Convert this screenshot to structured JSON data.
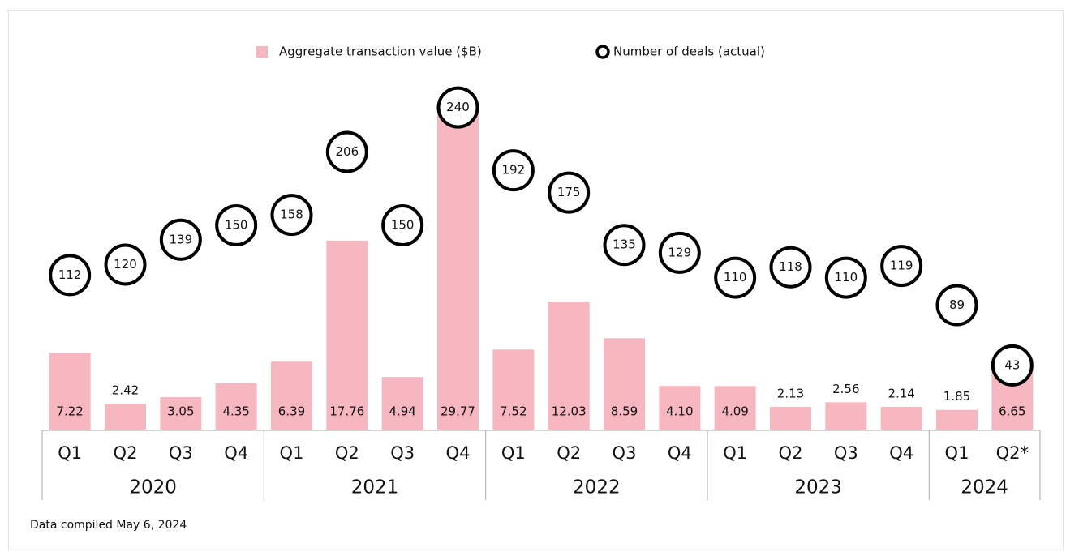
{
  "chart_data": {
    "type": "bar",
    "groups": [
      {
        "label": "2020",
        "items": [
          "Q1",
          "Q2",
          "Q3",
          "Q4"
        ]
      },
      {
        "label": "2021",
        "items": [
          "Q1",
          "Q2",
          "Q3",
          "Q4"
        ]
      },
      {
        "label": "2022",
        "items": [
          "Q1",
          "Q2",
          "Q3",
          "Q4"
        ]
      },
      {
        "label": "2023",
        "items": [
          "Q1",
          "Q2",
          "Q3",
          "Q4"
        ]
      },
      {
        "label": "2024",
        "items": [
          "Q1",
          "Q2*"
        ]
      }
    ],
    "series": [
      {
        "name": "Aggregate transaction value ($B)",
        "type": "bar",
        "color": "#f7b7c1",
        "values": [
          7.22,
          2.42,
          3.05,
          4.35,
          6.39,
          17.76,
          4.94,
          29.77,
          7.52,
          12.03,
          8.59,
          4.1,
          4.09,
          2.13,
          2.56,
          2.14,
          1.85,
          6.65
        ],
        "value_labels": [
          "7.22",
          "2.42",
          "3.05",
          "4.35",
          "6.39",
          "17.76",
          "4.94",
          "29.77",
          "7.52",
          "12.03",
          "8.59",
          "4.10",
          "4.09",
          "2.13",
          "2.56",
          "2.14",
          "1.85",
          "6.65"
        ]
      },
      {
        "name": "Number of deals (actual)",
        "type": "circle",
        "color": "#000000",
        "axis": "y2",
        "values": [
          112,
          120,
          139,
          150,
          158,
          206,
          150,
          240,
          192,
          175,
          135,
          129,
          110,
          118,
          110,
          119,
          89,
          43
        ]
      }
    ],
    "ylim": [
      0,
      32
    ],
    "y2lim": [
      -6,
      254
    ],
    "footnote": "Data compiled May 6, 2024"
  }
}
